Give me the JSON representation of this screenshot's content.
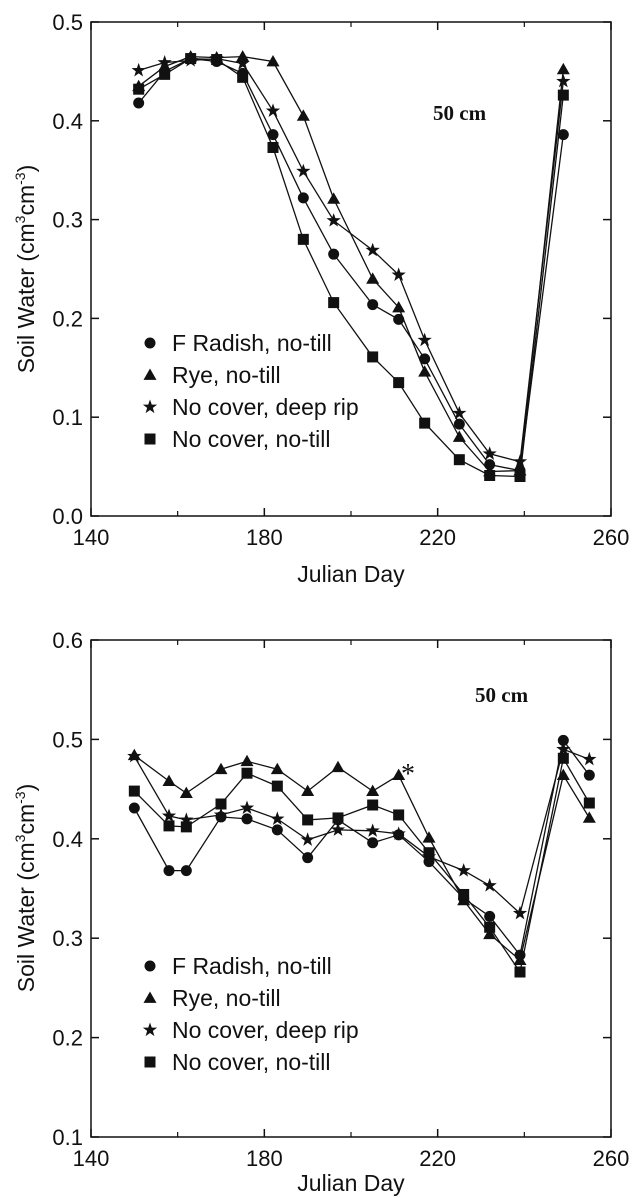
{
  "chart_data": [
    {
      "type": "line",
      "title": "",
      "annotation": "50 cm",
      "xlabel": "Julian Day",
      "ylabel_prefix": "Soil Water (cm",
      "ylabel_sup1": "3",
      "ylabel_mid": "cm",
      "ylabel_sup2": "-3",
      "ylabel_suffix": ")",
      "xlim": [
        140,
        260
      ],
      "ylim": [
        0.0,
        0.5
      ],
      "xticks": [
        140,
        180,
        220,
        260
      ],
      "xtick_labels": [
        "140",
        "180",
        "220",
        "260"
      ],
      "yticks": [
        0.0,
        0.1,
        0.2,
        0.3,
        0.4,
        0.5
      ],
      "ytick_labels": [
        "0.0",
        "0.1",
        "0.2",
        "0.3",
        "0.4",
        "0.5"
      ],
      "legend_position": "lower-left",
      "series": [
        {
          "name": "F Radish, no-till",
          "marker": "circle",
          "x": [
            151,
            157,
            163,
            169,
            175,
            182,
            189,
            196,
            205,
            211,
            217,
            225,
            232,
            239,
            249
          ],
          "y": [
            0.418,
            0.45,
            0.463,
            0.46,
            0.448,
            0.386,
            0.322,
            0.265,
            0.214,
            0.199,
            0.159,
            0.093,
            0.052,
            0.046,
            0.386
          ]
        },
        {
          "name": "Rye, no-till",
          "marker": "triangle",
          "x": [
            151,
            157,
            163,
            169,
            175,
            182,
            189,
            196,
            205,
            211,
            217,
            225,
            232,
            239,
            249
          ],
          "y": [
            0.435,
            0.455,
            0.465,
            0.464,
            0.465,
            0.46,
            0.405,
            0.321,
            0.24,
            0.211,
            0.146,
            0.08,
            0.045,
            0.046,
            0.452
          ]
        },
        {
          "name": "No cover, deep rip",
          "marker": "star",
          "x": [
            151,
            157,
            163,
            169,
            175,
            182,
            189,
            196,
            205,
            211,
            217,
            225,
            232,
            239,
            249
          ],
          "y": [
            0.451,
            0.459,
            0.461,
            0.463,
            0.458,
            0.41,
            0.349,
            0.299,
            0.269,
            0.244,
            0.178,
            0.104,
            0.063,
            0.055,
            0.44
          ]
        },
        {
          "name": "No cover, no-till",
          "marker": "square",
          "x": [
            151,
            157,
            163,
            169,
            175,
            182,
            189,
            196,
            205,
            211,
            217,
            225,
            232,
            239,
            249
          ],
          "y": [
            0.432,
            0.447,
            0.463,
            0.462,
            0.444,
            0.373,
            0.28,
            0.216,
            0.161,
            0.135,
            0.094,
            0.057,
            0.041,
            0.04,
            0.426
          ]
        }
      ]
    },
    {
      "type": "line",
      "title": "",
      "annotation": "50 cm",
      "annotation_mark": "*",
      "xlabel": "Julian Day",
      "ylabel_prefix": "Soil Water (cm",
      "ylabel_sup1": "3",
      "ylabel_mid": "cm",
      "ylabel_sup2": "-3",
      "ylabel_suffix": ")",
      "xlim": [
        140,
        260
      ],
      "ylim": [
        0.1,
        0.6
      ],
      "xticks": [
        140,
        180,
        220,
        260
      ],
      "xtick_labels": [
        "140",
        "180",
        "220",
        "260"
      ],
      "yticks": [
        0.1,
        0.2,
        0.3,
        0.4,
        0.5,
        0.6
      ],
      "ytick_labels": [
        "0.1",
        "0.2",
        "0.3",
        "0.4",
        "0.5",
        "0.6"
      ],
      "legend_position": "lower-left",
      "series": [
        {
          "name": "F Radish, no-till",
          "marker": "circle",
          "x": [
            150,
            158,
            162,
            170,
            176,
            183,
            190,
            197,
            205,
            211,
            218,
            226,
            232,
            239,
            249,
            255
          ],
          "y": [
            0.431,
            0.368,
            0.368,
            0.422,
            0.42,
            0.409,
            0.381,
            0.419,
            0.396,
            0.404,
            0.377,
            0.34,
            0.322,
            0.283,
            0.499,
            0.464
          ]
        },
        {
          "name": "Rye, no-till",
          "marker": "triangle",
          "x": [
            150,
            158,
            162,
            170,
            176,
            183,
            190,
            197,
            205,
            211,
            218,
            226,
            232,
            239,
            249,
            255
          ],
          "y": [
            0.484,
            0.458,
            0.446,
            0.47,
            0.478,
            0.47,
            0.448,
            0.472,
            0.448,
            0.464,
            0.401,
            0.338,
            0.304,
            0.278,
            0.464,
            0.421
          ]
        },
        {
          "name": "No cover, deep rip",
          "marker": "star",
          "x": [
            150,
            158,
            162,
            170,
            176,
            183,
            190,
            197,
            205,
            211,
            218,
            226,
            232,
            239,
            249,
            255
          ],
          "y": [
            0.483,
            0.423,
            0.419,
            0.424,
            0.431,
            0.42,
            0.399,
            0.409,
            0.408,
            0.405,
            0.382,
            0.368,
            0.353,
            0.325,
            0.49,
            0.48
          ]
        },
        {
          "name": "No cover, no-till",
          "marker": "square",
          "x": [
            150,
            158,
            162,
            170,
            176,
            183,
            190,
            197,
            205,
            211,
            218,
            226,
            232,
            239,
            249,
            255
          ],
          "y": [
            0.448,
            0.413,
            0.412,
            0.435,
            0.466,
            0.453,
            0.419,
            0.421,
            0.434,
            0.424,
            0.386,
            0.344,
            0.311,
            0.266,
            0.481,
            0.436
          ]
        }
      ]
    }
  ]
}
